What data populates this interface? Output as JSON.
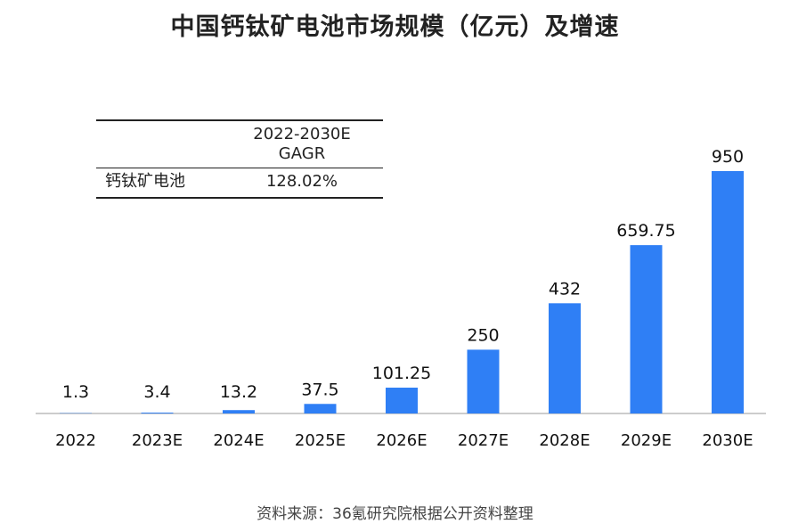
{
  "chart_data": {
    "type": "bar",
    "title": "中国钙钛矿电池市场规模（亿元）及增速",
    "categories": [
      "2022",
      "2023E",
      "2024E",
      "2025E",
      "2026E",
      "2027E",
      "2028E",
      "2029E",
      "2030E"
    ],
    "values": [
      1.3,
      3.4,
      13.2,
      37.5,
      101.25,
      250,
      432,
      659.75,
      950
    ],
    "value_labels": [
      "1.3",
      "3.4",
      "13.2",
      "37.5",
      "101.25",
      "250",
      "432",
      "659.75",
      "950"
    ],
    "xlabel": "",
    "ylabel": "",
    "ylim": [
      0,
      950
    ],
    "grid": false,
    "bar_color": "#2F7FF5",
    "axis_color": "#BBBBBB"
  },
  "gagr_table": {
    "header_line1": "2022-2030E",
    "header_line2": "GAGR",
    "row_label": "钙钛矿电池",
    "row_value": "128.02%"
  },
  "source": "资料来源：36氪研究院根据公开资料整理"
}
